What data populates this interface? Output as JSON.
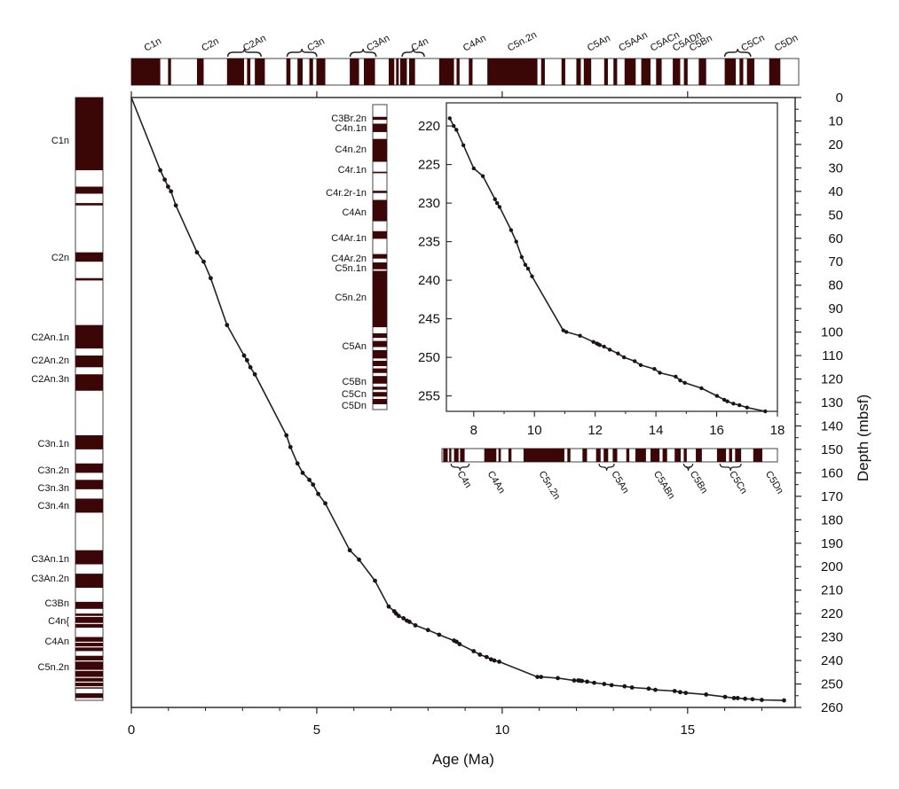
{
  "chart_data": [
    {
      "type": "line",
      "title": "",
      "xlabel": "Age (Ma)",
      "ylabel": "Depth (mbsf)",
      "xlim": [
        0,
        17.9
      ],
      "ylim": [
        260,
        0
      ],
      "xticks": [
        0,
        5,
        10,
        15
      ],
      "yticks": [
        0,
        10,
        20,
        30,
        40,
        50,
        60,
        70,
        80,
        90,
        100,
        110,
        120,
        130,
        140,
        150,
        160,
        170,
        180,
        190,
        200,
        210,
        220,
        230,
        240,
        250,
        260
      ],
      "grid": false,
      "x": [
        0.0,
        0.78,
        0.9,
        0.99,
        1.07,
        1.2,
        1.77,
        1.95,
        2.14,
        2.58,
        3.04,
        3.12,
        3.21,
        3.33,
        4.18,
        4.29,
        4.48,
        4.62,
        4.8,
        4.9,
        5.04,
        5.23,
        5.89,
        6.14,
        6.57,
        6.94,
        7.09,
        7.14,
        7.21,
        7.34,
        7.43,
        7.5,
        7.66,
        8.0,
        8.3,
        8.7,
        8.77,
        8.85,
        9.23,
        9.4,
        9.58,
        9.7,
        9.79,
        9.92,
        10.95,
        11.05,
        11.5,
        11.94,
        12.05,
        12.1,
        12.15,
        12.29,
        12.48,
        12.75,
        12.95,
        13.3,
        13.5,
        13.95,
        14.13,
        14.65,
        14.8,
        14.95,
        15.5,
        16.01,
        16.25,
        16.35,
        16.55,
        16.75,
        17.0,
        17.6
      ],
      "y": [
        0,
        31,
        35,
        38,
        40,
        46,
        66,
        70,
        77,
        97,
        110,
        112,
        115,
        118,
        144,
        149,
        156,
        160,
        163,
        165,
        169,
        173,
        193,
        197,
        206,
        217,
        219,
        220,
        221,
        222,
        223,
        223.5,
        225,
        227,
        229,
        231.5,
        232,
        233,
        236,
        237.5,
        238.5,
        239.5,
        240,
        240.5,
        247,
        247,
        247.5,
        248.5,
        248.5,
        248.6,
        248.7,
        249,
        249.5,
        250,
        250.5,
        251,
        251.5,
        252,
        252.5,
        253,
        253.5,
        253.8,
        254.5,
        255.5,
        256,
        256,
        256.3,
        256.5,
        256.8,
        257
      ]
    },
    {
      "type": "line",
      "title": "",
      "xlabel": "",
      "ylabel": "",
      "xlim": [
        7.1,
        18
      ],
      "ylim": [
        257,
        217
      ],
      "xticks": [
        8,
        10,
        12,
        14,
        16,
        18
      ],
      "yticks": [
        220,
        225,
        230,
        235,
        240,
        245,
        250,
        255
      ],
      "grid": false,
      "x": [
        7.21,
        7.34,
        7.43,
        7.66,
        8.0,
        8.3,
        8.7,
        8.77,
        8.85,
        9.23,
        9.4,
        9.58,
        9.7,
        9.79,
        9.92,
        10.95,
        11.05,
        11.5,
        11.94,
        12.05,
        12.1,
        12.15,
        12.29,
        12.48,
        12.75,
        12.95,
        13.3,
        13.5,
        13.95,
        14.13,
        14.65,
        14.8,
        14.95,
        15.5,
        16.01,
        16.25,
        16.35,
        16.55,
        16.75,
        17.0,
        17.6
      ],
      "y": [
        219,
        220,
        220.5,
        222.5,
        225.5,
        226.5,
        229.5,
        230,
        230.5,
        233.5,
        235,
        237,
        238,
        238.5,
        239.5,
        246.5,
        246.7,
        247.2,
        248,
        248.2,
        248.3,
        248.4,
        248.6,
        249,
        249.5,
        250,
        250.5,
        251,
        251.5,
        252,
        252.5,
        253,
        253.3,
        254,
        255,
        255.5,
        255.7,
        256,
        256.2,
        256.5,
        257
      ]
    }
  ],
  "top_chrons": [
    "C1n",
    "C2n",
    "C2An",
    "C3n",
    "C3An",
    "C4n",
    "C4An",
    "C5n.2n",
    "C5An",
    "C5AAn",
    "C5ACn",
    "C5ADn",
    "C5Bn",
    "C5Cn",
    "C5Dn"
  ],
  "left_chrons": [
    "C1n",
    "C2n",
    "C2An.1n",
    "C2An.2n",
    "C2An.3n",
    "C3n.1n",
    "C3n.2n",
    "C3n.3n",
    "C3n.4n",
    "C3An.1n",
    "C3An.2n",
    "C3Bn",
    "C4n{",
    "C4An",
    "C5n.2n"
  ],
  "inset_left_chrons": [
    "C3Br.2n",
    "C4n.1n",
    "C4n.2n",
    "C4r.1n",
    "C4r.2r-1n",
    "C4An",
    "C4Ar.1n",
    "C4Ar.2n",
    "C5n.1n",
    "C5n.2n",
    "C5An",
    "C5Bn",
    "C5Cn",
    "C5Dn"
  ],
  "inset_bottom_chrons": [
    "C4n",
    "C4An",
    "C5n.2n",
    "C5An",
    "C5ABn",
    "C5Bn",
    "C5Cn",
    "C5Dn"
  ],
  "colors": {
    "normal_polarity": "#3b0606",
    "line": "#2a2020",
    "marker": "#1c1414"
  }
}
